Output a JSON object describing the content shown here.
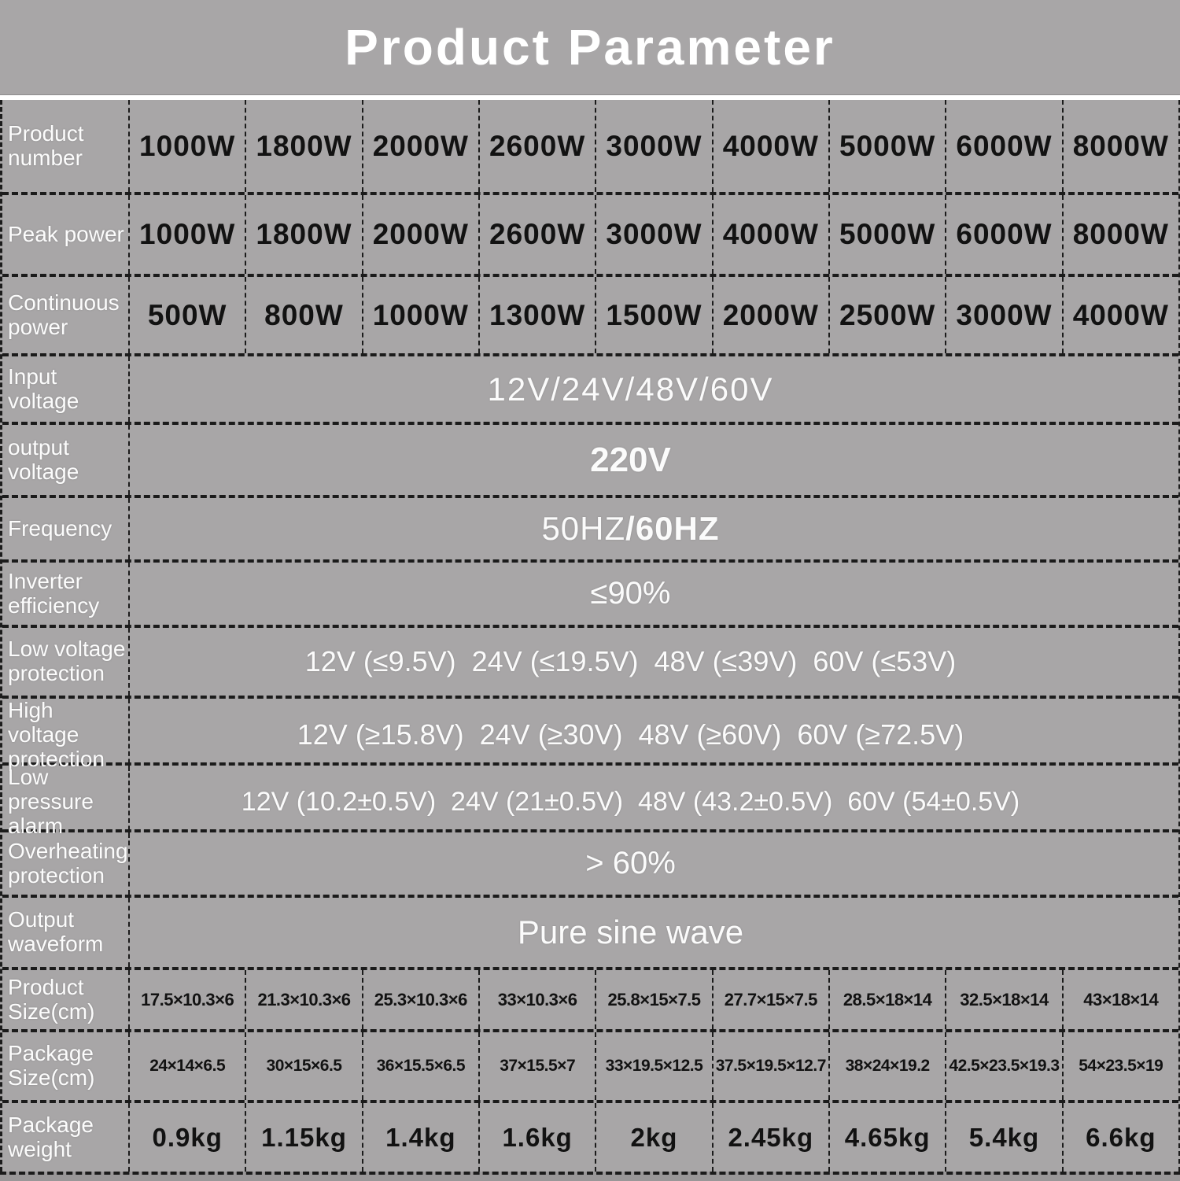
{
  "title": "Product Parameter",
  "colors": {
    "background": "#a8a6a7",
    "title_text": "#ffffff",
    "title_rule": "#ffffff",
    "label_text": "#fcfcfc",
    "value_dark_text": "#121212",
    "value_light_text": "#fbfbfb",
    "divider": "#1b1b1b",
    "bottom_strip": "#999798"
  },
  "rows": [
    {
      "label": "Product number",
      "cells": [
        "1000W",
        "1800W",
        "2000W",
        "2600W",
        "3000W",
        "4000W",
        "5000W",
        "6000W",
        "8000W"
      ]
    },
    {
      "label": "Peak power",
      "cells": [
        "1000W",
        "1800W",
        "2000W",
        "2600W",
        "3000W",
        "4000W",
        "5000W",
        "6000W",
        "8000W"
      ]
    },
    {
      "label": "Continuous power",
      "cells": [
        "500W",
        "800W",
        "1000W",
        "1300W",
        "1500W",
        "2000W",
        "2500W",
        "3000W",
        "4000W"
      ]
    },
    {
      "label": "Input voltage",
      "value": "12V/24V/48V/60V"
    },
    {
      "label": "output voltage",
      "value": "220V"
    },
    {
      "label": "Frequency",
      "value": "50HZ",
      "value2": "/60HZ"
    },
    {
      "label": "Inverter efficiency",
      "value": "≤90%"
    },
    {
      "label": "Low voltage protection",
      "value": "12V (≤9.5V)  24V (≤19.5V)  48V (≤39V)  60V (≤53V)"
    },
    {
      "label": "High voltage protection",
      "value": "12V (≥15.8V)  24V (≥30V)  48V (≥60V)  60V (≥72.5V)"
    },
    {
      "label": "Low pressure alarm",
      "value": "12V (10.2±0.5V)  24V (21±0.5V)  48V (43.2±0.5V)  60V (54±0.5V)"
    },
    {
      "label": "Overheating protection",
      "value": "> 60%"
    },
    {
      "label": "Output waveform",
      "value": "Pure sine wave"
    },
    {
      "label": "Product Size(cm)",
      "cells": [
        "17.5×10.3×6",
        "21.3×10.3×6",
        "25.3×10.3×6",
        "33×10.3×6",
        "25.8×15×7.5",
        "27.7×15×7.5",
        "28.5×18×14",
        "32.5×18×14",
        "43×18×14"
      ]
    },
    {
      "label": "Package Size(cm)",
      "cells": [
        "24×14×6.5",
        "30×15×6.5",
        "36×15.5×6.5",
        "37×15.5×7",
        "33×19.5×12.5",
        "37.5×19.5×12.7",
        "38×24×19.2",
        "42.5×23.5×19.3",
        "54×23.5×19"
      ]
    },
    {
      "label": "Package weight",
      "cells": [
        "0.9kg",
        "1.15kg",
        "1.4kg",
        "1.6kg",
        "2kg",
        "2.45kg",
        "4.65kg",
        "5.4kg",
        "6.6kg"
      ]
    }
  ]
}
